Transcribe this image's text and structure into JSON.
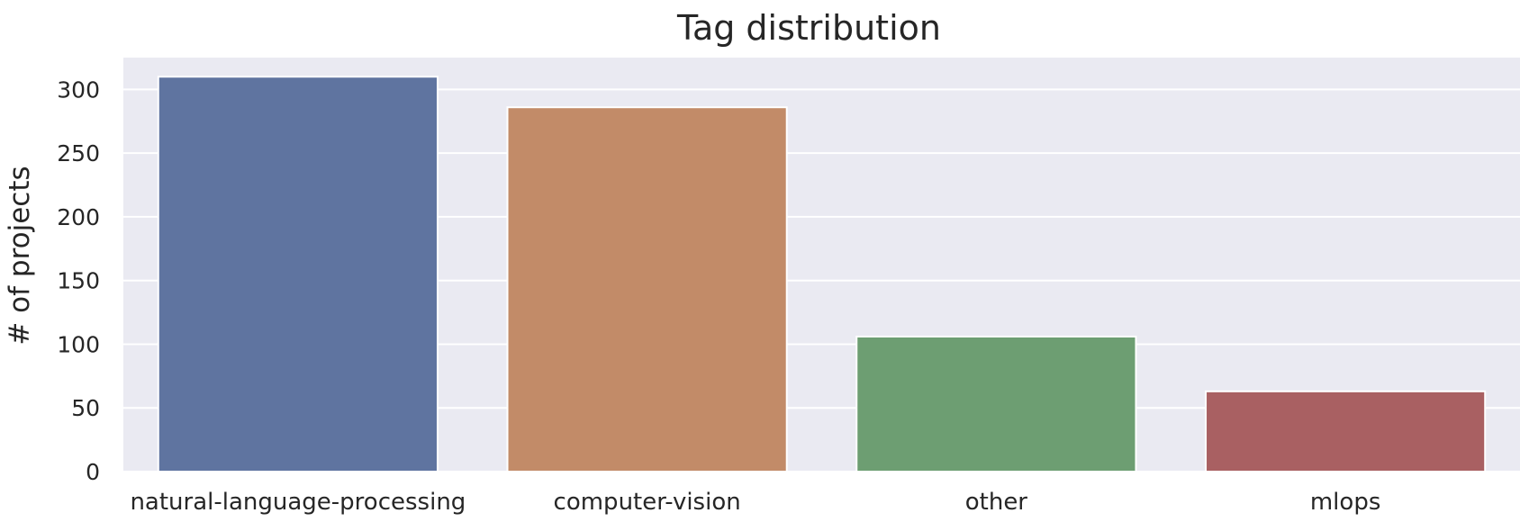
{
  "chart_data": {
    "type": "bar",
    "title": "Tag distribution",
    "xlabel": "",
    "ylabel": "# of projects",
    "categories": [
      "natural-language-processing",
      "computer-vision",
      "other",
      "mlops"
    ],
    "values": [
      310,
      286,
      106,
      63
    ],
    "ylim": [
      0,
      325
    ],
    "yticks": [
      0,
      50,
      100,
      150,
      200,
      250,
      300
    ],
    "grid": true,
    "legend": "none",
    "colors": [
      "#5f74a0",
      "#c28b68",
      "#6d9e72",
      "#a96062"
    ],
    "background": "#eaeaf2",
    "grid_color": "#ffffff"
  }
}
